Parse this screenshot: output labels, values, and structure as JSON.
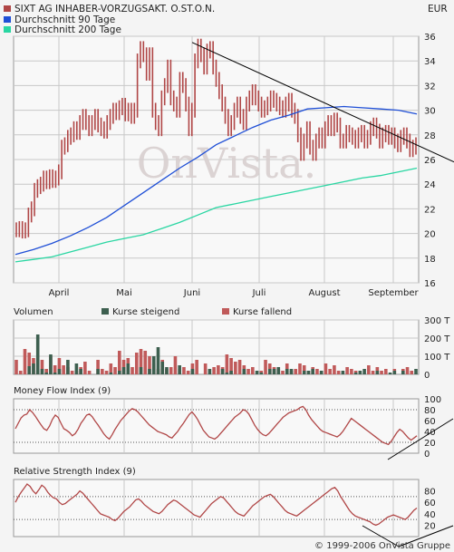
{
  "header": {
    "instrument": "SIXT AG INHABER-VORZUGSAKT. O.ST.O.N.",
    "currency": "EUR",
    "ma90_label": "Durchschnitt 90 Tage",
    "ma200_label": "Durchschnitt 200 Tage"
  },
  "colors": {
    "price": "#b04646",
    "ma90": "#1f4fd6",
    "ma200": "#29d6a2",
    "volume_up": "#3d5f4f",
    "volume_down": "#c05a5a",
    "trendline": "#000000",
    "grid": "#c8c8c8",
    "frame_bg": "#f8f8f8"
  },
  "volume_panel": {
    "title": "Volumen",
    "legend_up": "Kurse steigend",
    "legend_down": "Kurse fallend"
  },
  "mfi_panel": {
    "title": "Money Flow Index (9)"
  },
  "rsi_panel": {
    "title": "Relative Strength Index (9)"
  },
  "footer": {
    "copyright": "© 1999-2006 OnVista Gruppe"
  },
  "watermark": "OnVista.",
  "chart_data": [
    {
      "type": "candlestick",
      "title": "SIXT AG INHABER-VORZUGSAKT. O.ST.O.N.",
      "ylabel": "EUR",
      "ylim": [
        16,
        36
      ],
      "yticks": [
        16,
        18,
        20,
        22,
        24,
        26,
        28,
        30,
        32,
        34,
        36
      ],
      "x_tick_labels": [
        "April",
        "Mai",
        "Juni",
        "Juli",
        "August",
        "September"
      ],
      "legend": "top-left",
      "grid": true,
      "series": [
        {
          "name": "SIXT AG INHABER-VORZUGSAKT. O.ST.O.N.",
          "values": [
            20.3,
            20.4,
            20.2,
            20.3,
            21.5,
            22.0,
            23.5,
            23.8,
            24.0,
            24.5,
            24.2,
            24.6,
            24.3,
            24.5,
            25.0,
            27.0,
            27.2,
            27.8,
            28.0,
            28.5,
            28.2,
            29.0,
            29.5,
            29.0,
            28.5,
            29.0,
            29.5,
            28.8,
            28.5,
            28.3,
            29.0,
            29.5,
            30.0,
            29.8,
            30.2,
            30.4,
            29.7,
            30.0,
            29.5,
            30.0,
            34.0,
            35.0,
            34.5,
            33.0,
            34.5,
            30.0,
            29.0,
            28.5,
            31.0,
            32.0,
            33.5,
            31.0,
            30.5,
            30.0,
            32.5,
            32.0,
            30.5,
            28.5,
            30.0,
            34.0,
            35.2,
            34.5,
            33.5,
            34.8,
            35.0,
            33.5,
            32.5,
            31.5,
            30.5,
            29.5,
            28.5,
            29.0,
            30.0,
            30.5,
            29.5,
            29.0,
            30.5,
            31.0,
            31.5,
            31.0,
            30.5,
            30.0,
            30.2,
            30.5,
            31.0,
            30.8,
            30.5,
            30.2,
            30.0,
            30.5,
            30.8,
            30.0,
            29.5,
            28.0,
            26.5,
            27.5,
            28.5,
            27.0,
            26.5,
            27.5,
            28.0,
            27.5,
            28.5,
            29.0,
            28.5,
            29.2,
            28.8,
            27.5,
            27.5,
            28.2,
            28.0,
            27.8,
            27.5,
            28.0,
            28.2,
            27.5,
            27.8,
            28.5,
            28.8,
            28.3,
            27.5,
            28.0,
            28.2,
            27.8,
            28.0,
            27.5,
            27.2,
            27.8,
            28.0,
            27.5,
            26.8,
            27.0,
            27.2
          ]
        },
        {
          "name": "Durchschnitt 90 Tage",
          "values": [
            18.3,
            18.7,
            19.2,
            19.8,
            20.5,
            21.3,
            22.3,
            23.3,
            24.3,
            25.3,
            26.2,
            27.2,
            27.9,
            28.6,
            29.2,
            29.6,
            30.1,
            30.2,
            30.3,
            30.2,
            30.1,
            30.0,
            29.7
          ]
        },
        {
          "name": "Durchschnitt 200 Tage",
          "values": [
            17.7,
            17.9,
            18.1,
            18.5,
            18.9,
            19.3,
            19.6,
            19.9,
            20.4,
            20.9,
            21.5,
            22.1,
            22.4,
            22.7,
            23.0,
            23.3,
            23.6,
            23.9,
            24.2,
            24.5,
            24.7,
            25.0,
            25.3
          ]
        }
      ]
    },
    {
      "type": "bar",
      "title": "Volumen",
      "yticks_labels": [
        "0",
        "100 T",
        "200 T",
        "300 T"
      ],
      "ylim": [
        0,
        300
      ],
      "series": [
        {
          "name": "Kurse steigend",
          "values": [
            0,
            0,
            0,
            45,
            60,
            220,
            30,
            10,
            110,
            10,
            30,
            0,
            80,
            0,
            60,
            30,
            0,
            0,
            0,
            30,
            0,
            0,
            10,
            0,
            20,
            40,
            60,
            0,
            0,
            40,
            0,
            30,
            100,
            150,
            70,
            40,
            0,
            0,
            50,
            0,
            0,
            30,
            0,
            0,
            0,
            30,
            0,
            0,
            30,
            10,
            20,
            0,
            0,
            30,
            0,
            0,
            20,
            10,
            0,
            30,
            30,
            40,
            0,
            30,
            30,
            0,
            0,
            20,
            20,
            30,
            0,
            20,
            0,
            0,
            0,
            0,
            20,
            0,
            0,
            10,
            20,
            30,
            0,
            0,
            20,
            0,
            0,
            10,
            20,
            0,
            20,
            0,
            0,
            30
          ]
        },
        {
          "name": "Kurse fallend",
          "values": [
            80,
            20,
            140,
            120,
            90,
            20,
            80,
            30,
            100,
            50,
            90,
            50,
            40,
            20,
            20,
            40,
            70,
            20,
            0,
            80,
            30,
            20,
            60,
            40,
            130,
            80,
            90,
            40,
            120,
            140,
            130,
            100,
            60,
            30,
            80,
            30,
            40,
            100,
            30,
            40,
            20,
            60,
            80,
            0,
            60,
            0,
            40,
            50,
            40,
            110,
            90,
            70,
            80,
            50,
            30,
            40,
            0,
            20,
            80,
            60,
            40,
            30,
            20,
            60,
            20,
            30,
            60,
            50,
            20,
            40,
            30,
            20,
            60,
            30,
            50,
            20,
            0,
            40,
            30,
            20,
            0,
            0,
            50,
            20,
            40,
            20,
            30,
            0,
            30,
            0,
            30,
            40,
            20,
            0
          ]
        }
      ]
    },
    {
      "type": "line",
      "title": "Money Flow Index (9)",
      "ylim": [
        0,
        100
      ],
      "yticks": [
        0,
        20,
        40,
        60,
        80,
        100
      ],
      "series": [
        {
          "name": "Money Flow Index (9)",
          "values": [
            45,
            55,
            65,
            70,
            72,
            80,
            75,
            68,
            60,
            52,
            45,
            42,
            50,
            62,
            70,
            66,
            55,
            45,
            42,
            38,
            32,
            36,
            44,
            55,
            62,
            70,
            72,
            67,
            59,
            52,
            44,
            36,
            30,
            26,
            34,
            44,
            52,
            60,
            66,
            72,
            78,
            82,
            80,
            76,
            70,
            64,
            58,
            52,
            48,
            44,
            40,
            38,
            36,
            34,
            30,
            28,
            34,
            40,
            48,
            55,
            63,
            71,
            76,
            70,
            62,
            52,
            42,
            36,
            30,
            28,
            26,
            30,
            36,
            42,
            48,
            54,
            60,
            66,
            70,
            74,
            80,
            78,
            72,
            62,
            52,
            44,
            38,
            34,
            32,
            36,
            42,
            48,
            54,
            60,
            66,
            70,
            74,
            76,
            78,
            80,
            84,
            86,
            80,
            70,
            62,
            56,
            50,
            44,
            40,
            38,
            36,
            34,
            32,
            30,
            34,
            40,
            48,
            56,
            64,
            60,
            56,
            52,
            48,
            44,
            40,
            36,
            32,
            28,
            24,
            20,
            18,
            16,
            22,
            30,
            38,
            44,
            40,
            34,
            28,
            24,
            28,
            32
          ]
        }
      ]
    },
    {
      "type": "line",
      "title": "Relative Strength Index (9)",
      "ylim": [
        0,
        100
      ],
      "yticks": [
        20,
        40,
        60,
        80
      ],
      "series": [
        {
          "name": "Relative Strength Index (9)",
          "values": [
            60,
            70,
            78,
            85,
            92,
            88,
            80,
            75,
            82,
            90,
            86,
            78,
            72,
            68,
            66,
            60,
            56,
            58,
            62,
            66,
            70,
            74,
            80,
            76,
            70,
            64,
            58,
            52,
            46,
            40,
            38,
            36,
            34,
            30,
            28,
            32,
            38,
            44,
            48,
            52,
            58,
            64,
            66,
            62,
            56,
            52,
            48,
            44,
            42,
            40,
            44,
            50,
            56,
            60,
            64,
            62,
            58,
            54,
            50,
            46,
            42,
            38,
            36,
            34,
            40,
            46,
            52,
            58,
            62,
            66,
            70,
            68,
            62,
            56,
            50,
            44,
            40,
            38,
            36,
            42,
            48,
            54,
            58,
            62,
            66,
            70,
            72,
            74,
            70,
            64,
            58,
            52,
            46,
            42,
            40,
            38,
            36,
            40,
            44,
            48,
            52,
            56,
            60,
            64,
            68,
            72,
            76,
            80,
            84,
            86,
            80,
            70,
            62,
            54,
            46,
            40,
            36,
            34,
            32,
            30,
            28,
            26,
            22,
            20,
            22,
            26,
            30,
            34,
            36,
            38,
            36,
            34,
            32,
            30,
            34,
            40,
            46,
            50
          ]
        }
      ]
    }
  ]
}
